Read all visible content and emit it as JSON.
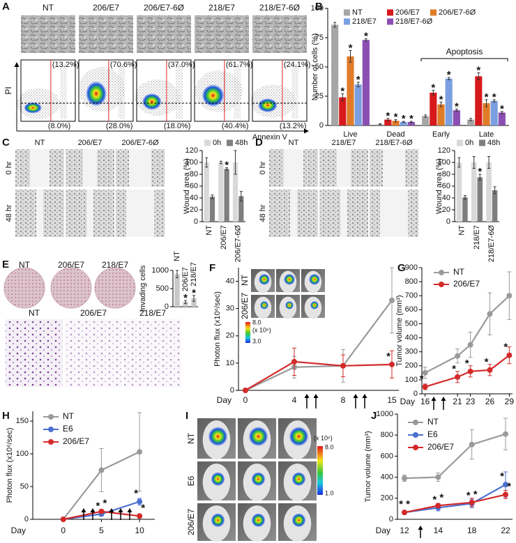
{
  "figure": {
    "panel_labels": [
      "A",
      "B",
      "C",
      "D",
      "E",
      "F",
      "G",
      "H",
      "I",
      "J"
    ],
    "panel_A": {
      "columns": [
        "NT",
        "206/E7",
        "206/E7-6Ø",
        "218/E7",
        "218/E7-6Ø"
      ],
      "upper_right": [
        "(13.2%)",
        "(70.6%)",
        "(37.0%)",
        "(61.7%)",
        "(24.1%)"
      ],
      "lower_right": [
        "(8.0%)",
        "(28.0%)",
        "(18.0%)",
        "(40.4%)",
        "(13.2%)"
      ],
      "y_axis": "PI",
      "x_axis": "Annexin V"
    },
    "panel_C": {
      "columns": [
        "NT",
        "206/E7",
        "206/E7-6Ø"
      ],
      "rows": [
        "0 hr",
        "48 hr"
      ]
    },
    "panel_D": {
      "columns": [
        "NT",
        "218/E7",
        "218/E7-6Ø"
      ],
      "rows": [
        "0 hr",
        "48 hr"
      ]
    },
    "panel_E": {
      "dishes": [
        "NT",
        "206/E7",
        "218/E7"
      ],
      "micrographs": [
        "NT",
        "206/E7",
        "218/E7"
      ]
    },
    "panel_F": {
      "rows": [
        "NT",
        "206/E7"
      ],
      "colorbar": {
        "max": "8.0",
        "unit": "(x 10⁶)",
        "min": "3.0"
      }
    },
    "panel_I": {
      "rows": [
        "NT",
        "E6",
        "206/E7"
      ],
      "colorbar": {
        "unit": "(x 10⁶)",
        "max": "8.0",
        "min": "1.0"
      }
    }
  },
  "chart_data": [
    {
      "type": "bar",
      "ylabel": "Number of cells (%)",
      "annotation": "Apoptosis",
      "categories": [
        "Live",
        "Dead",
        "Early",
        "Late"
      ],
      "ylim": [
        0,
        100
      ],
      "yticks": [
        0,
        25,
        50,
        75,
        100
      ],
      "legend": "top",
      "series": [
        {
          "name": "NT",
          "color": "#a6a6a6",
          "values": [
            86,
            1,
            8,
            5
          ],
          "errors": [
            2,
            0.5,
            1,
            1
          ]
        },
        {
          "name": "206/E7",
          "color": "#d7191c",
          "values": [
            24,
            5,
            28,
            42
          ],
          "errors": [
            3,
            1,
            2,
            3
          ],
          "stars": [
            "*",
            "*",
            "*",
            "*"
          ]
        },
        {
          "name": "206/E7-6Ø",
          "color": "#e07b28",
          "values": [
            59,
            4,
            18,
            19
          ],
          "errors": [
            5,
            1,
            2,
            3
          ],
          "stars": [
            "*",
            "*",
            "*",
            "*"
          ]
        },
        {
          "name": "218/E7",
          "color": "#7b9fe0",
          "values": [
            35,
            3,
            40,
            21
          ],
          "errors": [
            2,
            0.5,
            1,
            1
          ],
          "stars": [
            "*",
            "*",
            "*",
            "*"
          ]
        },
        {
          "name": "218/E7-6Ø",
          "color": "#8b4fb3",
          "values": [
            73,
            3,
            13,
            11
          ],
          "errors": [
            1,
            0.5,
            1,
            1
          ],
          "stars": [
            "*",
            "*",
            "*",
            "*"
          ]
        }
      ]
    },
    {
      "type": "bar",
      "ylabel": "Wound area (%)",
      "categories": [
        "NT",
        "206/E7",
        "206/E7-6Ø"
      ],
      "ylim": [
        0,
        120
      ],
      "yticks": [
        0,
        20,
        40,
        60,
        80,
        100,
        120
      ],
      "legend": "upper right",
      "star_color": "#000000",
      "series": [
        {
          "name": "0h",
          "color": "#d9d9d9",
          "values": [
            100,
            100,
            100
          ],
          "errors": [
            8,
            2,
            20
          ]
        },
        {
          "name": "48h",
          "color": "#7f7f7f",
          "values": [
            42,
            89,
            43
          ],
          "errors": [
            3,
            2,
            8
          ],
          "stars": [
            null,
            "*",
            null
          ]
        }
      ]
    },
    {
      "type": "bar",
      "ylabel": "Wound area (%)",
      "categories": [
        "NT",
        "218/E7",
        "218/E7-6Ø"
      ],
      "ylim": [
        0,
        120
      ],
      "yticks": [
        0,
        20,
        40,
        60,
        80,
        100,
        120
      ],
      "legend": "upper right",
      "star_color": "#000000",
      "series": [
        {
          "name": "0h",
          "color": "#d9d9d9",
          "values": [
            100,
            100,
            100
          ],
          "errors": [
            8,
            10,
            10
          ]
        },
        {
          "name": "48h",
          "color": "#7f7f7f",
          "values": [
            41,
            75,
            53
          ],
          "errors": [
            3,
            5,
            6
          ],
          "stars": [
            null,
            "*",
            null
          ]
        }
      ]
    },
    {
      "type": "bar",
      "ylabel": "Invading cells",
      "categories": [
        "NT",
        "206/E7",
        "218/E7"
      ],
      "ylim": [
        0,
        1000
      ],
      "yticks": [
        0,
        500,
        1000
      ],
      "star_color": "#000000",
      "series": [
        {
          "color": "#c8c8c8",
          "values": [
            900,
            130,
            230
          ],
          "errors": [
            100,
            40,
            80
          ],
          "stars": [
            null,
            "*",
            "*"
          ]
        }
      ]
    },
    {
      "type": "line",
      "ylabel": "Photon flux (x10⁶/sec)",
      "xlabel": "Day",
      "categories": [
        0,
        4,
        8,
        15
      ],
      "ylim": [
        0,
        45
      ],
      "yticks": [
        0,
        10,
        20,
        30,
        40
      ],
      "series": [
        {
          "color": "#9a9a9a",
          "values": [
            0,
            8.5,
            9,
            33
          ],
          "errors": [
            0,
            4,
            6,
            12
          ]
        },
        {
          "color": "#d42a2a",
          "values": [
            0,
            10.5,
            9,
            9.5
          ],
          "errors": [
            0,
            5,
            4,
            5
          ],
          "stars": [
            null,
            null,
            null,
            "*"
          ]
        }
      ]
    },
    {
      "type": "line",
      "ylabel": "Tumor volume (mm³)",
      "xlabel": "Day",
      "x": [
        16,
        21,
        23,
        26,
        29
      ],
      "xlim": [
        15.5,
        29.5
      ],
      "xticks": [
        16,
        21,
        23,
        26,
        29
      ],
      "ylim": [
        0,
        900
      ],
      "yticks": [
        0,
        100,
        200,
        300,
        400,
        500,
        600,
        700,
        800,
        900
      ],
      "legend": "upper left",
      "series": [
        {
          "name": "NT",
          "color": "#9a9a9a",
          "values": [
            150,
            270,
            350,
            570,
            700
          ],
          "errors": [
            40,
            50,
            90,
            150,
            170
          ]
        },
        {
          "name": "206/E7",
          "color": "#d42a2a",
          "values": [
            50,
            120,
            160,
            170,
            275
          ],
          "errors": [
            20,
            40,
            40,
            40,
            60
          ],
          "stars": [
            "*",
            "*",
            "*",
            "*",
            "*"
          ]
        }
      ]
    },
    {
      "type": "line",
      "ylabel": "Photon flux (x10⁶/sec)",
      "xlabel": "Day",
      "x": [
        0,
        5,
        10
      ],
      "xlim": [
        -4,
        12
      ],
      "xticks": [
        0,
        5,
        10
      ],
      "ylim": [
        0,
        165
      ],
      "yticks": [
        0,
        50,
        100,
        150
      ],
      "legend": "upper left",
      "series": [
        {
          "name": "NT",
          "color": "#9a9a9a",
          "values": [
            0,
            75,
            103
          ],
          "errors": [
            0,
            33,
            60
          ]
        },
        {
          "name": "E6",
          "color": "#4a6fd0",
          "values": [
            0,
            8,
            27
          ],
          "errors": [
            0,
            3,
            5
          ],
          "stars": [
            null,
            "*",
            "*"
          ]
        },
        {
          "name": "206/E7",
          "color": "#d42a2a",
          "values": [
            0,
            12,
            5
          ],
          "errors": [
            0,
            3,
            3
          ],
          "stars": [
            null,
            "*",
            "*"
          ]
        }
      ]
    },
    {
      "type": "line",
      "ylabel": "Tumor volume (mm³)",
      "xlabel": "Day",
      "categories": [
        12,
        14,
        18,
        22
      ],
      "ylim": [
        0,
        1000
      ],
      "yticks": [
        0,
        200,
        400,
        600,
        800,
        1000
      ],
      "legend": "upper left",
      "series": [
        {
          "name": "NT",
          "color": "#9a9a9a",
          "values": [
            390,
            400,
            710,
            810
          ],
          "errors": [
            30,
            40,
            140,
            150
          ]
        },
        {
          "name": "E6",
          "color": "#4a6fd0",
          "values": [
            65,
            110,
            150,
            330
          ],
          "errors": [
            10,
            30,
            40,
            120
          ],
          "stars": [
            "*",
            "*",
            "*",
            "*"
          ]
        },
        {
          "name": "206/E7",
          "color": "#d42a2a",
          "values": [
            65,
            130,
            160,
            235
          ],
          "errors": [
            10,
            20,
            40,
            40
          ],
          "stars": [
            "*",
            "*",
            "*",
            "*"
          ]
        }
      ]
    }
  ]
}
